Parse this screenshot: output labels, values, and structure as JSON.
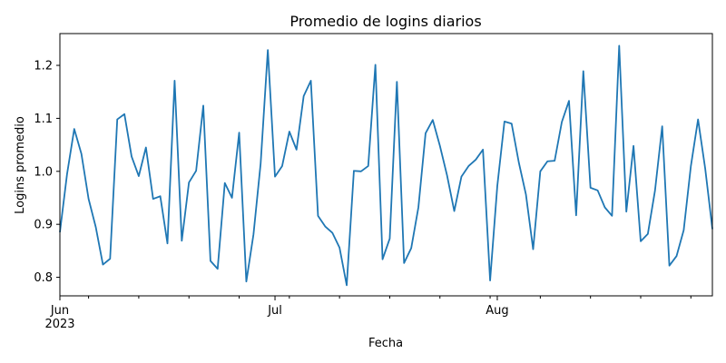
{
  "chart_data": {
    "type": "line",
    "title": "Promedio de logins diarios",
    "xlabel": "Fecha",
    "ylabel": "Logins promedio",
    "xlim": [
      "2023-06-01",
      "2023-08-31"
    ],
    "ylim": [
      0.765,
      1.26
    ],
    "yticks": [
      0.8,
      0.9,
      1.0,
      1.1,
      1.2
    ],
    "ytick_labels": [
      "0.8",
      "0.9",
      "1.0",
      "1.1",
      "1.2"
    ],
    "xticks_major": [
      {
        "date": "2023-06-01",
        "label": "Jun",
        "sublabel": "2023"
      },
      {
        "date": "2023-07-01",
        "label": "Jul",
        "sublabel": ""
      },
      {
        "date": "2023-08-01",
        "label": "Aug",
        "sublabel": ""
      }
    ],
    "xticks_minor": [
      "2023-06-05",
      "2023-06-12",
      "2023-06-19",
      "2023-06-26",
      "2023-07-03",
      "2023-07-10",
      "2023-07-17",
      "2023-07-24",
      "2023-07-31",
      "2023-08-07",
      "2023-08-14",
      "2023-08-21",
      "2023-08-28"
    ],
    "grid": false,
    "series": [
      {
        "color": "#1f77b4",
        "start": "2023-06-01",
        "values": [
          0.885,
          0.995,
          1.08,
          1.033,
          0.948,
          0.895,
          0.824,
          0.835,
          1.098,
          1.108,
          1.028,
          0.991,
          1.045,
          0.948,
          0.953,
          0.864,
          1.171,
          0.869,
          0.979,
          1.001,
          1.124,
          0.831,
          0.816,
          0.978,
          0.95,
          1.073,
          0.792,
          0.881,
          1.015,
          1.229,
          0.99,
          1.01,
          1.075,
          1.041,
          1.142,
          1.171,
          0.916,
          0.896,
          0.884,
          0.856,
          0.785,
          1.001,
          1.0,
          1.01,
          1.201,
          0.834,
          0.873,
          1.169,
          0.827,
          0.855,
          0.932,
          1.072,
          1.097,
          1.048,
          0.992,
          0.925,
          0.99,
          1.01,
          1.022,
          1.041,
          0.794,
          0.972,
          1.094,
          1.09,
          1.017,
          0.956,
          0.853,
          1.0,
          1.019,
          1.02,
          1.093,
          1.133,
          0.917,
          1.189,
          0.969,
          0.964,
          0.932,
          0.916,
          1.237,
          0.924,
          1.048,
          0.868,
          0.882,
          0.964,
          1.085,
          0.822,
          0.84,
          0.889,
          1.01,
          1.098,
          1.005,
          0.891
        ]
      }
    ]
  }
}
